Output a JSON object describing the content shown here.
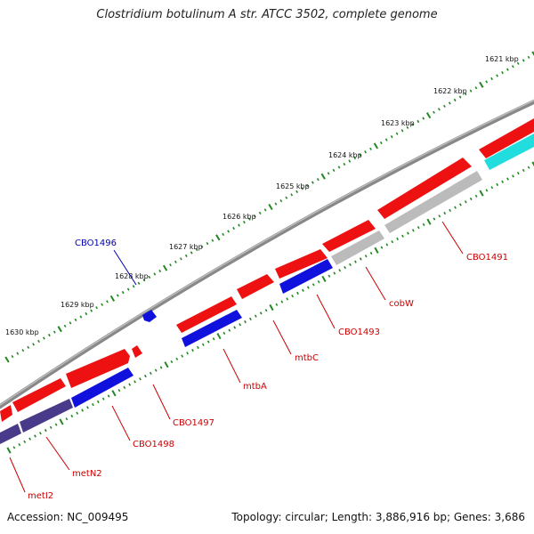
{
  "title": "Clostridium botulinum A str. ATCC 3502, complete genome",
  "footer": {
    "accession": "Accession: NC_009495",
    "summary": "Topology: circular; Length: 3,886,916 bp; Genes: 3,686"
  },
  "colors": {
    "forward": "#ee1111",
    "reverse_blue": "#1111dd",
    "reverse_navy": "#4a3a8a",
    "reverse_gray": "#bbbbbb",
    "reverse_cyan": "#22dddd",
    "backbone": "#777777",
    "ticks": "#228822",
    "label_red": "#cc0000",
    "label_blue": "#0000aa"
  },
  "kbp_labels": [
    "1621 kbp",
    "1622 kbp",
    "1623 kbp",
    "1624 kbp",
    "1625 kbp",
    "1626 kbp",
    "1627 kbp",
    "1628 kbp",
    "1629 kbp",
    "1630 kbp"
  ],
  "gene_labels": [
    "CBO1491",
    "cobW",
    "CBO1493",
    "mtbC",
    "mtbA",
    "CBO1497",
    "CBO1498",
    "metN2",
    "metI2",
    "CBO1496"
  ]
}
